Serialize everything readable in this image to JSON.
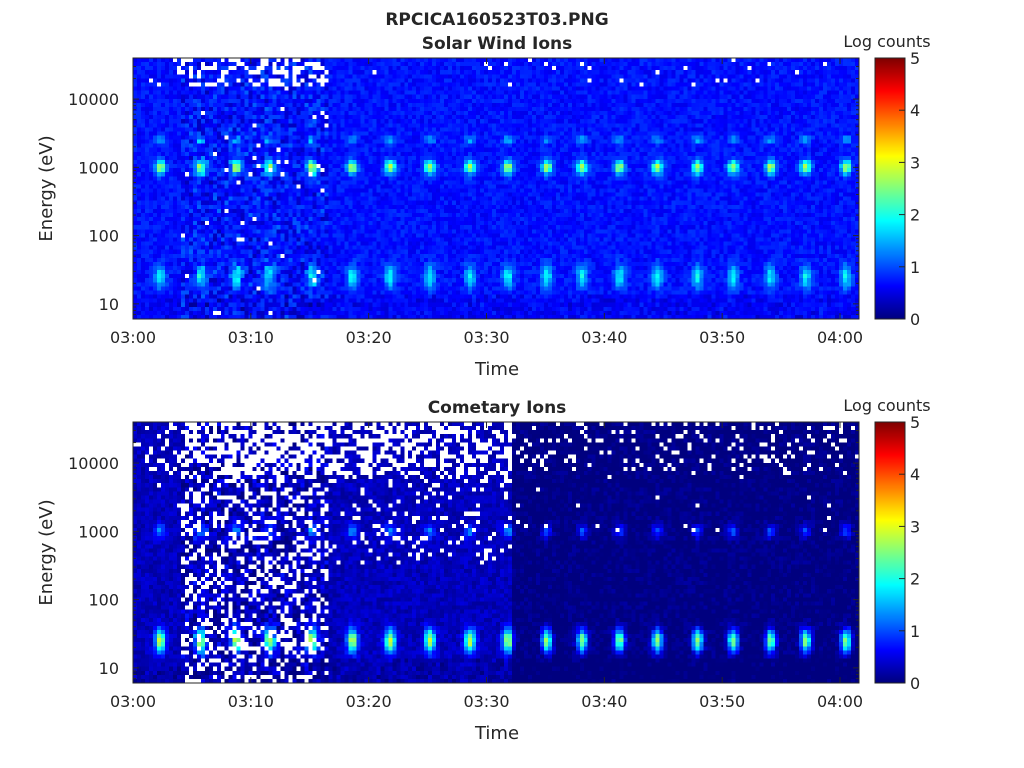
{
  "chart_data": [
    {
      "type": "heatmap",
      "suptitle": "RPCICA160523T03.PNG",
      "title": "Solar Wind Ions",
      "xlabel": "Time",
      "ylabel": "Energy (eV)",
      "xticks": [
        "03:00",
        "03:10",
        "03:20",
        "03:30",
        "03:40",
        "03:50",
        "04:00"
      ],
      "xlim_minutes": [
        0,
        61.6
      ],
      "yticks": [
        "10",
        "100",
        "1000",
        "10000"
      ],
      "ylim": [
        6,
        40000
      ],
      "yscale": "log",
      "colorbar": {
        "label": "Log counts",
        "ticks": [
          "0",
          "1",
          "2",
          "3",
          "4",
          "5"
        ],
        "range": [
          0,
          5
        ],
        "colormap": "jet"
      },
      "burst_times_minutes": [
        2.3,
        5.7,
        8.8,
        11.6,
        15.2,
        18.6,
        21.8,
        25.2,
        28.6,
        31.8,
        35.1,
        38.1,
        41.3,
        44.5,
        47.9,
        50.9,
        54.1,
        57.1,
        60.5
      ],
      "features": {
        "high_energy_peak_eV": 1000,
        "high_peak_log_counts": 2.8,
        "low_energy_peak_eV": 25,
        "low_peak_log_counts": 1.9,
        "background_log_counts": 0.7
      },
      "noisy_interval_minutes": [
        3.9,
        16.5
      ]
    },
    {
      "type": "heatmap",
      "title": "Cometary Ions",
      "xlabel": "Time",
      "ylabel": "Energy (eV)",
      "xticks": [
        "03:00",
        "03:10",
        "03:20",
        "03:30",
        "03:40",
        "03:50",
        "04:00"
      ],
      "xlim_minutes": [
        0,
        61.6
      ],
      "yticks": [
        "10",
        "100",
        "1000",
        "10000"
      ],
      "ylim": [
        6,
        40000
      ],
      "yscale": "log",
      "colorbar": {
        "label": "Log counts",
        "ticks": [
          "0",
          "1",
          "2",
          "3",
          "4",
          "5"
        ],
        "range": [
          0,
          5
        ],
        "colormap": "jet"
      },
      "burst_times_minutes": [
        2.3,
        5.7,
        8.8,
        11.6,
        15.2,
        18.6,
        21.8,
        25.2,
        28.6,
        31.8,
        35.1,
        38.1,
        41.3,
        44.5,
        47.9,
        50.9,
        54.1,
        57.1,
        60.5
      ],
      "features": {
        "high_energy_peak_eV": 1000,
        "high_peak_log_counts": 1.3,
        "low_energy_peak_eV": 25,
        "low_peak_log_counts": 2.9,
        "background_log_counts": 0.3
      },
      "noisy_interval_minutes": [
        3.9,
        16.5
      ]
    }
  ]
}
